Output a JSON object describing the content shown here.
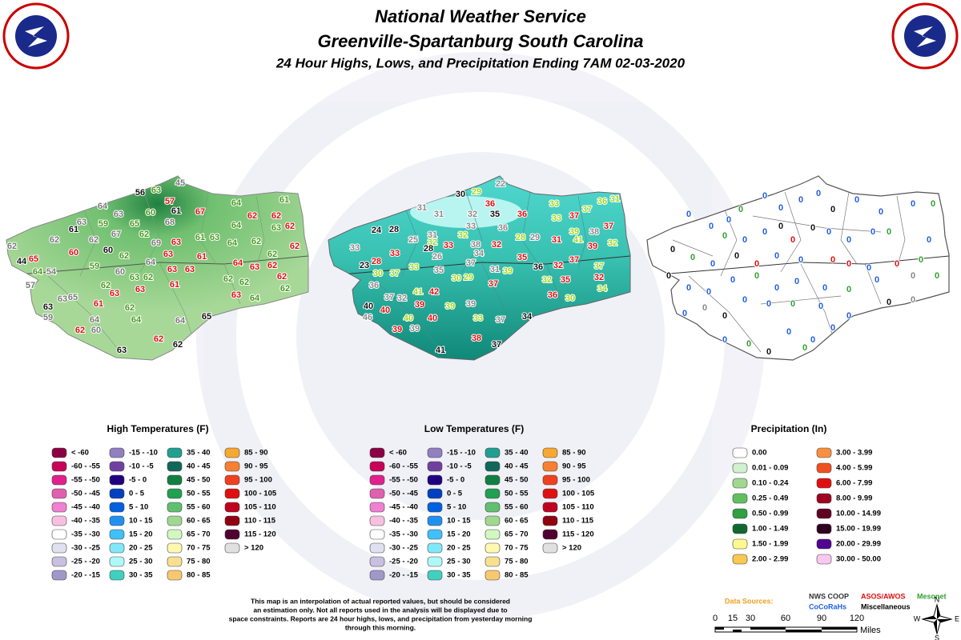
{
  "header": {
    "title": "National Weather Service",
    "subtitle": "Greenville-Spartanburg South Carolina",
    "line3": "24 Hour Highs, Lows, and Precipitation Ending 7AM 02-03-2020"
  },
  "maps": {
    "high": {
      "title": "High Temperatures (F)",
      "stations": [
        "56",
        "63",
        "45",
        "64",
        "61",
        "60",
        "57",
        "67",
        "64",
        "61",
        "63",
        "68",
        "62",
        "62",
        "63",
        "65",
        "64",
        "63",
        "61",
        "59",
        "67",
        "62",
        "61",
        "63",
        "62",
        "62",
        "62",
        "63",
        "69",
        "64",
        "62",
        "62",
        "62",
        "60",
        "60",
        "62",
        "63",
        "62",
        "44",
        "65",
        "59",
        "64",
        "61",
        "64",
        "63",
        "62",
        "64",
        "54",
        "60",
        "63",
        "62",
        "63",
        "63",
        "62",
        "57",
        "62",
        "62",
        "63",
        "61",
        "62",
        "62",
        "63",
        "63",
        "63",
        "63",
        "65",
        "61",
        "62",
        "64",
        "59",
        "64",
        "65",
        "62",
        "60",
        "64",
        "64",
        "62",
        "62",
        "63"
      ],
      "legend": [
        {
          "label": "< -60",
          "color": "#8b0045"
        },
        {
          "label": "-60 - -55",
          "color": "#c8005a"
        },
        {
          "label": "-55 - -50",
          "color": "#e0208c"
        },
        {
          "label": "-50 - -45",
          "color": "#e060b0"
        },
        {
          "label": "-45 - -40",
          "color": "#f080d0"
        },
        {
          "label": "-40 - -35",
          "color": "#f8c0e0"
        },
        {
          "label": "-35 - -30",
          "color": "#ffffff"
        },
        {
          "label": "-30 - -25",
          "color": "#e0e0f0"
        },
        {
          "label": "-25 - -20",
          "color": "#c8c0e0"
        },
        {
          "label": "-20 - -15",
          "color": "#a098c8"
        },
        {
          "label": "-15 - -10",
          "color": "#9080c0"
        },
        {
          "label": "-10 - -5",
          "color": "#7040a0"
        },
        {
          "label": "-5 - 0",
          "color": "#200080"
        },
        {
          "label": "0 - 5",
          "color": "#0040c0"
        },
        {
          "label": "5 - 10",
          "color": "#0060e0"
        },
        {
          "label": "10 - 15",
          "color": "#2090f0"
        },
        {
          "label": "15 - 20",
          "color": "#40c0f8"
        },
        {
          "label": "20 - 25",
          "color": "#80e8f8"
        },
        {
          "label": "25 - 30",
          "color": "#b0f8f8"
        },
        {
          "label": "30 - 35",
          "color": "#40d0c0"
        },
        {
          "label": "35 - 40",
          "color": "#20a090"
        },
        {
          "label": "40 - 45",
          "color": "#106858"
        },
        {
          "label": "45 - 50",
          "color": "#108040"
        },
        {
          "label": "50 - 55",
          "color": "#20a050"
        },
        {
          "label": "55 - 60",
          "color": "#60c070"
        },
        {
          "label": "60 - 65",
          "color": "#a0d890"
        },
        {
          "label": "65 - 70",
          "color": "#d0f8c0"
        },
        {
          "label": "70 - 75",
          "color": "#fff8b0"
        },
        {
          "label": "75 - 80",
          "color": "#f8e090"
        },
        {
          "label": "80 - 85",
          "color": "#f8c870"
        },
        {
          "label": "85 - 90",
          "color": "#f8a830"
        },
        {
          "label": "90 - 95",
          "color": "#f88030"
        },
        {
          "label": "95 - 100",
          "color": "#f04020"
        },
        {
          "label": "100 - 105",
          "color": "#e01010"
        },
        {
          "label": "105 - 110",
          "color": "#c00020"
        },
        {
          "label": "110 - 115",
          "color": "#900010"
        },
        {
          "label": "115 - 120",
          "color": "#500030"
        },
        {
          "label": "> 120",
          "color": "#e0e0e0"
        }
      ]
    },
    "low": {
      "title": "Low Temperatures (F)",
      "stations": [
        "30",
        "29",
        "22",
        "31",
        "36",
        "33",
        "36",
        "31",
        "31",
        "32",
        "35",
        "36",
        "37",
        "37",
        "33",
        "24",
        "28",
        "33",
        "36",
        "37",
        "31",
        "32",
        "28",
        "29",
        "39",
        "38",
        "25",
        "32",
        "33",
        "38",
        "32",
        "31",
        "41",
        "32",
        "33",
        "28",
        "34",
        "39",
        "33",
        "28",
        "26",
        "37",
        "35",
        "37",
        "23",
        "33",
        "32",
        "36",
        "30",
        "37",
        "35",
        "31",
        "39",
        "37",
        "30",
        "29",
        "32",
        "35",
        "32",
        "36",
        "37",
        "34",
        "41",
        "42",
        "32",
        "37",
        "39",
        "36",
        "30",
        "39",
        "39",
        "40",
        "40",
        "46",
        "40",
        "40",
        "33",
        "37",
        "34",
        "39",
        "39",
        "38",
        "37",
        "41"
      ],
      "legend": [
        {
          "label": "< -60",
          "color": "#8b0045"
        },
        {
          "label": "-60 - -55",
          "color": "#c8005a"
        },
        {
          "label": "-55 - -50",
          "color": "#e0208c"
        },
        {
          "label": "-50 - -45",
          "color": "#e060b0"
        },
        {
          "label": "-45 - -40",
          "color": "#f080d0"
        },
        {
          "label": "-40 - -35",
          "color": "#f8c0e0"
        },
        {
          "label": "-35 - -30",
          "color": "#ffffff"
        },
        {
          "label": "-30 - -25",
          "color": "#e0e0f0"
        },
        {
          "label": "-25 - -20",
          "color": "#c8c0e0"
        },
        {
          "label": "-20 - -15",
          "color": "#a098c8"
        },
        {
          "label": "-15 - -10",
          "color": "#9080c0"
        },
        {
          "label": "-10 - -5",
          "color": "#7040a0"
        },
        {
          "label": "-5 - 0",
          "color": "#200080"
        },
        {
          "label": "0 - 5",
          "color": "#0040c0"
        },
        {
          "label": "5 - 10",
          "color": "#0060e0"
        },
        {
          "label": "10 - 15",
          "color": "#2090f0"
        },
        {
          "label": "15 - 20",
          "color": "#40c0f8"
        },
        {
          "label": "20 - 25",
          "color": "#80e8f8"
        },
        {
          "label": "25 - 30",
          "color": "#b0f8f8"
        },
        {
          "label": "30 - 35",
          "color": "#40d0c0"
        },
        {
          "label": "35 - 40",
          "color": "#20a090"
        },
        {
          "label": "40 - 45",
          "color": "#106858"
        },
        {
          "label": "45 - 50",
          "color": "#108040"
        },
        {
          "label": "50 - 55",
          "color": "#20a050"
        },
        {
          "label": "55 - 60",
          "color": "#60c070"
        },
        {
          "label": "60 - 65",
          "color": "#a0d890"
        },
        {
          "label": "65 - 70",
          "color": "#d0f8c0"
        },
        {
          "label": "70 - 75",
          "color": "#fff8b0"
        },
        {
          "label": "75 - 80",
          "color": "#f8e090"
        },
        {
          "label": "80 - 85",
          "color": "#f8c870"
        },
        {
          "label": "85 - 90",
          "color": "#f8a830"
        },
        {
          "label": "90 - 95",
          "color": "#f88030"
        },
        {
          "label": "95 - 100",
          "color": "#f04020"
        },
        {
          "label": "100 - 105",
          "color": "#e01010"
        },
        {
          "label": "105 - 110",
          "color": "#c00020"
        },
        {
          "label": "110 - 115",
          "color": "#900010"
        },
        {
          "label": "115 - 120",
          "color": "#500030"
        },
        {
          "label": "> 120",
          "color": "#e0e0e0"
        }
      ]
    },
    "precip": {
      "title": "Precipitation (In)",
      "stations": [
        "0",
        "0",
        "0",
        "0",
        "0",
        "0",
        "0",
        "0",
        "0",
        "0",
        "0",
        "0",
        "0",
        "0",
        "0",
        "0",
        "0",
        "0",
        "0",
        "0",
        "0",
        "0",
        "0",
        "0",
        "0",
        "0",
        "0",
        "0",
        "0",
        "0",
        "0",
        "0",
        "0",
        "0",
        "0",
        "0",
        "0",
        "0",
        "0",
        "0",
        "0",
        "0",
        "0",
        "0",
        "0",
        "0",
        "0",
        "0",
        "0",
        "0",
        "0",
        "0",
        "0",
        "0",
        "0",
        "0",
        "0",
        "0",
        "0",
        "0",
        "0",
        "0",
        "0",
        "0",
        "0"
      ],
      "legend": [
        {
          "label": "0.00",
          "color": "#ffffff"
        },
        {
          "label": "0.01 - 0.09",
          "color": "#d0f0d0"
        },
        {
          "label": "0.10 - 0.24",
          "color": "#a0d890"
        },
        {
          "label": "0.25 - 0.49",
          "color": "#60c060"
        },
        {
          "label": "0.50 - 0.99",
          "color": "#30a040"
        },
        {
          "label": "1.00 - 1.49",
          "color": "#106830"
        },
        {
          "label": "1.50 - 1.99",
          "color": "#fff890"
        },
        {
          "label": "2.00 - 2.99",
          "color": "#f8c850"
        },
        {
          "label": "3.00 - 3.99",
          "color": "#f89040"
        },
        {
          "label": "4.00 - 5.99",
          "color": "#f05020"
        },
        {
          "label": "6.00 - 7.99",
          "color": "#e01010"
        },
        {
          "label": "8.00 - 9.99",
          "color": "#a00020"
        },
        {
          "label": "10.00 - 14.99",
          "color": "#600020"
        },
        {
          "label": "15.00 - 19.99",
          "color": "#300020"
        },
        {
          "label": "20.00 - 29.99",
          "color": "#500090"
        },
        {
          "label": "30.00 - 50.00",
          "color": "#f8c8f0"
        }
      ]
    }
  },
  "note": [
    "This map is an interpolation of actual reported values, but should be considered",
    "an estimation only. Not all reports used in the analysis will be displayed due to",
    "space constraints. Reports are 24 hour highs, lows, and precipitation from yesterday morning",
    "through this morning."
  ],
  "sources": {
    "label": "Data Sources:",
    "nws_coop": "NWS COOP",
    "cocorahs": "CoCoRaHs",
    "asos": "ASOS/AWOS",
    "misc": "Miscellaneous",
    "mesonet": "Mesonet"
  },
  "scale": {
    "ticks": [
      "0",
      "15",
      "30",
      "60",
      "90",
      "120"
    ],
    "unit": "Miles"
  },
  "compass": [
    "N",
    "E",
    "S",
    "W"
  ]
}
